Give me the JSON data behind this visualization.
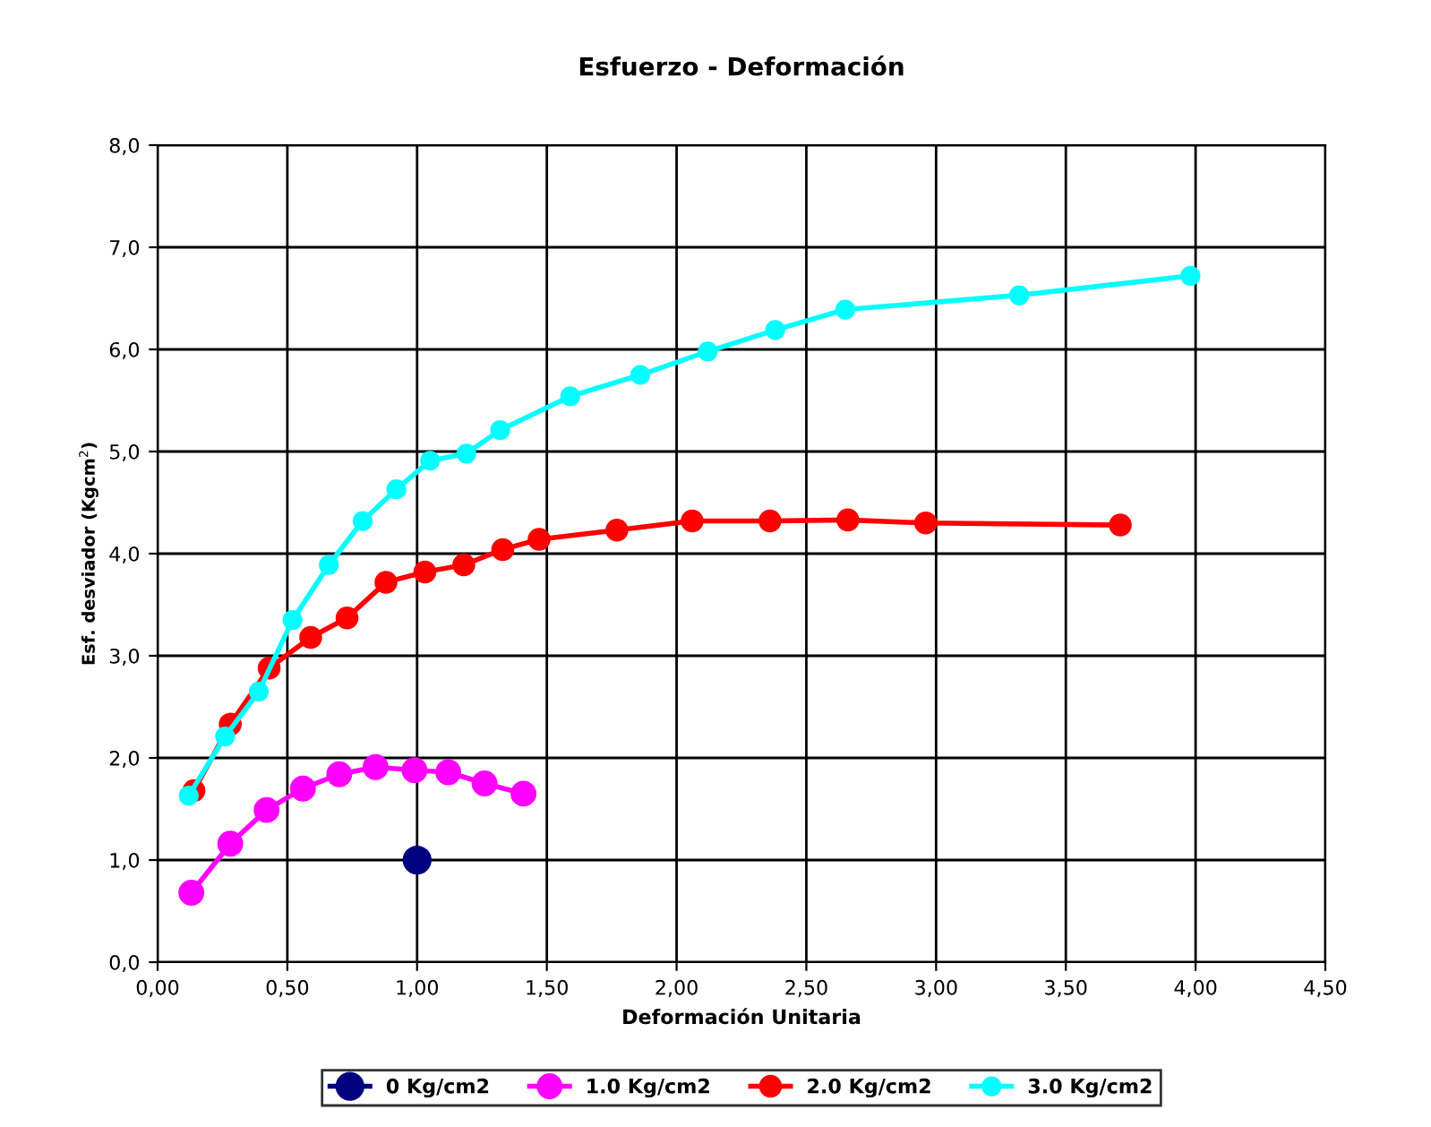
{
  "chart_data": {
    "type": "line",
    "title": "Esfuerzo - Deformación",
    "xlabel": "Deformación Unitaria",
    "ylabel": "Esf. desviador (Kgcm$^{2}$)",
    "xlim": [
      0,
      4.5
    ],
    "xticks": [
      {
        "value": 0,
        "label": "0,00"
      },
      {
        "value": 0.5,
        "label": "0,50"
      },
      {
        "value": 1,
        "label": "1,00"
      },
      {
        "value": 1.5,
        "label": "1,50"
      },
      {
        "value": 2,
        "label": "2,00"
      },
      {
        "value": 2.5,
        "label": "2,50"
      },
      {
        "value": 3,
        "label": "3,00"
      },
      {
        "value": 3.5,
        "label": "3,50"
      },
      {
        "value": 4,
        "label": "4,00"
      },
      {
        "value": 4.5,
        "label": "4,50"
      }
    ],
    "ylim": [
      0,
      8
    ],
    "yticks": [
      {
        "value": 0,
        "label": "0,0"
      },
      {
        "value": 1,
        "label": "1,0"
      },
      {
        "value": 2,
        "label": "2,0"
      },
      {
        "value": 3,
        "label": "3,0"
      },
      {
        "value": 4,
        "label": "4,0"
      },
      {
        "value": 5,
        "label": "5,0"
      },
      {
        "value": 6,
        "label": "6,0"
      },
      {
        "value": 7,
        "label": "7,0"
      },
      {
        "value": 8,
        "label": "8,0"
      }
    ],
    "grid": true,
    "legend": "bottom",
    "marker": "circle",
    "line_style": "solid",
    "series": [
      {
        "name": "0 Kg/cm2",
        "color": "#000080",
        "x": [
          1.0
        ],
        "values": [
          1.0
        ]
      },
      {
        "name": "1.0 Kg/cm2",
        "color": "#ff00ff",
        "x": [
          0.13,
          0.28,
          0.42,
          0.56,
          0.7,
          0.84,
          0.99,
          1.12,
          1.26,
          1.41
        ],
        "values": [
          0.68,
          1.16,
          1.49,
          1.7,
          1.84,
          1.91,
          1.88,
          1.86,
          1.75,
          1.65
        ]
      },
      {
        "name": "2.0 Kg/cm2",
        "color": "#ff0000",
        "x": [
          0.14,
          0.28,
          0.43,
          0.59,
          0.73,
          0.88,
          1.03,
          1.18,
          1.33,
          1.47,
          1.77,
          2.06,
          2.36,
          2.66,
          2.96,
          3.71
        ],
        "values": [
          1.68,
          2.33,
          2.88,
          3.18,
          3.37,
          3.72,
          3.82,
          3.89,
          4.04,
          4.14,
          4.23,
          4.32,
          4.32,
          4.33,
          4.3,
          4.28
        ]
      },
      {
        "name": "3.0 Kg/cm2",
        "color": "#00ffff",
        "x": [
          0.12,
          0.26,
          0.39,
          0.52,
          0.66,
          0.79,
          0.92,
          1.05,
          1.19,
          1.32,
          1.59,
          1.86,
          2.12,
          2.38,
          2.65,
          3.32,
          3.98
        ],
        "values": [
          1.63,
          2.21,
          2.65,
          3.35,
          3.89,
          4.32,
          4.63,
          4.91,
          4.98,
          5.21,
          5.54,
          5.75,
          5.98,
          6.19,
          6.39,
          6.53,
          6.72
        ]
      }
    ]
  }
}
